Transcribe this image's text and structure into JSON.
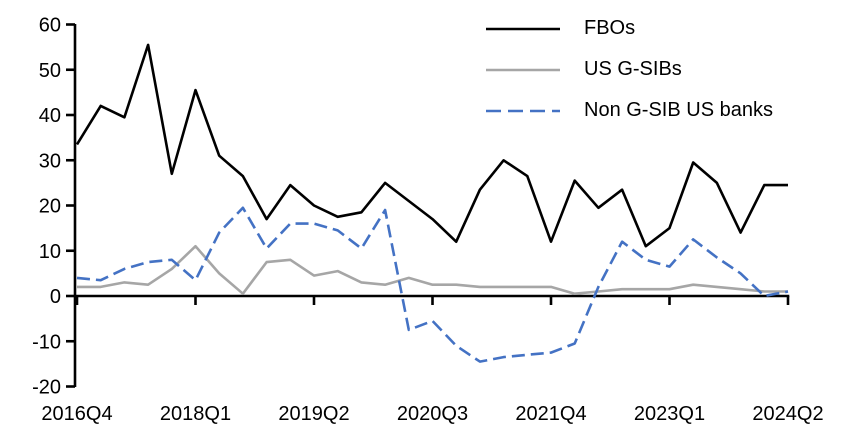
{
  "chart_data": {
    "type": "line",
    "title": "",
    "xlabel": "",
    "ylabel": "",
    "ylim": [
      -20,
      60
    ],
    "ytick_step": 10,
    "ytick_labels": [
      "60",
      "50",
      "40",
      "30",
      "20",
      "10",
      "0",
      "-10",
      "-20"
    ],
    "x_tick_labels": [
      "2016Q4",
      "2018Q1",
      "2019Q2",
      "2020Q3",
      "2021Q4",
      "2023Q1",
      "2024Q2"
    ],
    "x_tick_every": 5,
    "grid": false,
    "legend_position": "top-right",
    "axis_color": "#000000",
    "categories": [
      "2016Q4",
      "2017Q1",
      "2017Q2",
      "2017Q3",
      "2017Q4",
      "2018Q1",
      "2018Q2",
      "2018Q3",
      "2018Q4",
      "2019Q1",
      "2019Q2",
      "2019Q3",
      "2019Q4",
      "2020Q1",
      "2020Q2",
      "2020Q3",
      "2020Q4",
      "2021Q1",
      "2021Q2",
      "2021Q3",
      "2021Q4",
      "2022Q1",
      "2022Q2",
      "2022Q3",
      "2022Q4",
      "2023Q1",
      "2023Q2",
      "2023Q3",
      "2023Q4",
      "2024Q1",
      "2024Q2"
    ],
    "series": [
      {
        "name": "FBOs",
        "color": "#000000",
        "style": "solid",
        "values": [
          33.5,
          42,
          39.5,
          55.5,
          27,
          45.5,
          31,
          26.5,
          17,
          24.5,
          20,
          17.5,
          18.5,
          25,
          21,
          17,
          12,
          23.5,
          30,
          26.5,
          12,
          25.5,
          19.5,
          23.5,
          11,
          15,
          29.5,
          25,
          14,
          24.5,
          24.5
        ]
      },
      {
        "name": "US G-SIBs",
        "color": "#a6a6a6",
        "style": "solid",
        "values": [
          2,
          2,
          3,
          2.5,
          6,
          11,
          5,
          0.5,
          7.5,
          8,
          4.5,
          5.5,
          3,
          2.5,
          4,
          2.5,
          2.5,
          2,
          2,
          2,
          2,
          0.5,
          1,
          1.5,
          1.5,
          1.5,
          2.5,
          2,
          1.5,
          1,
          1
        ]
      },
      {
        "name": "Non G-SIB US banks",
        "color": "#4472c4",
        "style": "dashed",
        "values": [
          4,
          3.5,
          6,
          7.5,
          8,
          3.5,
          14,
          19.5,
          10.5,
          16,
          16,
          14.5,
          10.5,
          19,
          -7.5,
          -5.5,
          -11,
          -14.5,
          -13.5,
          -13,
          -12.5,
          -10.5,
          2,
          12,
          8,
          6.5,
          12.5,
          8.5,
          5,
          0,
          1
        ]
      }
    ]
  }
}
